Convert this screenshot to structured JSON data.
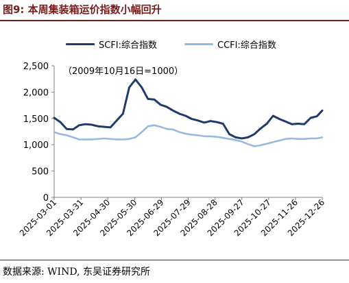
{
  "figure": {
    "title": "图9:  本周集装箱运价指数小幅回升",
    "source": "数据来源:  WIND,  东吴证券研究所"
  },
  "colors": {
    "title": "#7a1b1b",
    "scfi": "#1f3a6b",
    "ccfi": "#9ab7e3",
    "axis": "#808080"
  },
  "chart_data": {
    "type": "line",
    "title": "",
    "xlabel": "",
    "ylabel": "",
    "annotation": "（2009年10月16日=1000）",
    "ylim": [
      0,
      2500
    ],
    "y_ticks": [
      "0",
      "500",
      "1,000",
      "1,500",
      "2,000",
      "2,500"
    ],
    "y_tick_values": [
      0,
      500,
      1000,
      1500,
      2000,
      2500
    ],
    "x_ticks": [
      "2025-03-01",
      "2025-03-31",
      "2025-04-30",
      "2025-05-30",
      "2025-06-29",
      "2025-07-29",
      "2025-08-28",
      "2025-09-27",
      "2025-10-27",
      "2025-11-26",
      "2025-12-26"
    ],
    "grid": false,
    "legend_position": "top",
    "x": [
      "2025-03-01",
      "2025-03-08",
      "2025-03-15",
      "2025-03-22",
      "2025-03-29",
      "2025-04-05",
      "2025-04-12",
      "2025-04-19",
      "2025-04-26",
      "2025-05-03",
      "2025-05-10",
      "2025-05-17",
      "2025-05-24",
      "2025-05-31",
      "2025-06-07",
      "2025-06-14",
      "2025-06-21",
      "2025-06-28",
      "2025-07-05",
      "2025-07-12",
      "2025-07-19",
      "2025-07-26",
      "2025-08-02",
      "2025-08-09",
      "2025-08-16",
      "2025-08-23",
      "2025-08-30",
      "2025-09-06",
      "2025-09-13",
      "2025-09-20",
      "2025-09-27",
      "2025-10-04",
      "2025-10-11",
      "2025-10-18",
      "2025-10-25",
      "2025-11-01",
      "2025-11-08",
      "2025-11-15",
      "2025-11-22",
      "2025-11-29",
      "2025-12-06",
      "2025-12-13",
      "2025-12-20",
      "2025-12-26"
    ],
    "series": [
      {
        "name": "SCFI:综合指数",
        "color": "#1f3a6b",
        "values": [
          1510,
          1430,
          1300,
          1290,
          1370,
          1390,
          1380,
          1350,
          1340,
          1330,
          1460,
          1590,
          2090,
          2240,
          2090,
          1870,
          1860,
          1760,
          1720,
          1650,
          1590,
          1550,
          1490,
          1460,
          1420,
          1450,
          1430,
          1400,
          1200,
          1140,
          1120,
          1140,
          1200,
          1310,
          1400,
          1550,
          1490,
          1440,
          1390,
          1400,
          1390,
          1510,
          1540,
          1650
        ]
      },
      {
        "name": "CCFI:综合指数",
        "color": "#9ab7e3",
        "values": [
          1240,
          1200,
          1180,
          1140,
          1100,
          1100,
          1100,
          1110,
          1120,
          1110,
          1100,
          1100,
          1110,
          1140,
          1240,
          1350,
          1370,
          1340,
          1300,
          1290,
          1240,
          1210,
          1190,
          1180,
          1160,
          1160,
          1150,
          1130,
          1110,
          1090,
          1060,
          1010,
          970,
          990,
          1020,
          1050,
          1080,
          1110,
          1120,
          1110,
          1110,
          1120,
          1120,
          1140
        ]
      }
    ]
  }
}
